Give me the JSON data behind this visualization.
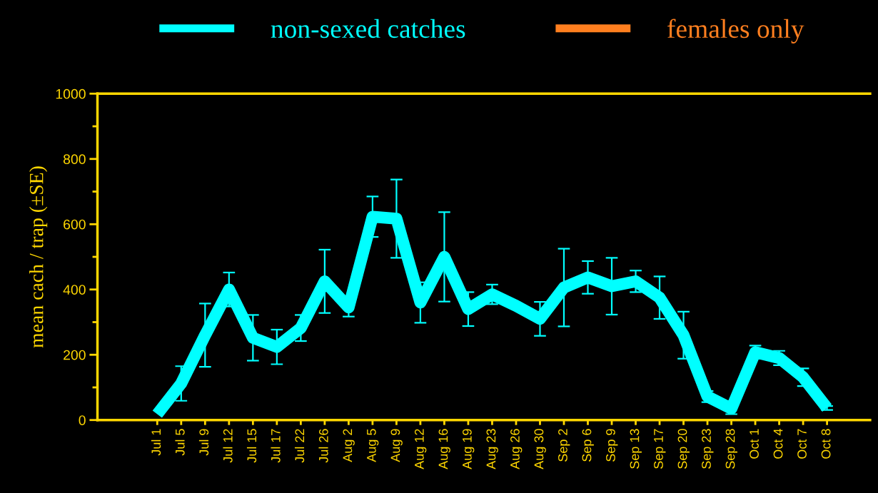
{
  "chart_data": {
    "type": "line",
    "ylabel": "mean cach / trap (±SE)",
    "categories": [
      "Jul 1",
      "Jul 5",
      "Jul 9",
      "Jul 12",
      "Jul 15",
      "Jul 17",
      "Jul 22",
      "Jul 26",
      "Aug 2",
      "Aug 5",
      "Aug 9",
      "Aug 12",
      "Aug 16",
      "Aug 19",
      "Aug 23",
      "Aug 26",
      "Aug 30",
      "Sep 2",
      "Sep 6",
      "Sep 9",
      "Sep 13",
      "Sep 17",
      "Sep 20",
      "Sep 23",
      "Sep 28",
      "Oct 1",
      "Oct 4",
      "Oct 7",
      "Oct 8"
    ],
    "series": [
      {
        "name": "non-sexed catches",
        "color": "#00ffff",
        "values": [
          18,
          112,
          260,
          400,
          252,
          224,
          282,
          425,
          345,
          623,
          617,
          360,
          500,
          340,
          385,
          350,
          310,
          406,
          437,
          410,
          425,
          375,
          260,
          72,
          35,
          208,
          190,
          131,
          37
        ],
        "errors": [
          null,
          53,
          97,
          52,
          70,
          53,
          40,
          97,
          28,
          62,
          120,
          62,
          137,
          52,
          30,
          null,
          52,
          119,
          50,
          87,
          33,
          65,
          72,
          17,
          17,
          20,
          22,
          27,
          6
        ]
      },
      {
        "name": "females only",
        "color": "#ff7f1f",
        "values": [
          null,
          null,
          null,
          null,
          null,
          null,
          null,
          null,
          null,
          null,
          null,
          null,
          null,
          null,
          null,
          null,
          null,
          null,
          null,
          null,
          null,
          null,
          null,
          null,
          null,
          null,
          null,
          null,
          null
        ]
      }
    ],
    "ylim": [
      0,
      1000
    ],
    "yticks": [
      0,
      200,
      400,
      600,
      800,
      1000
    ],
    "grid": false,
    "legend": "top",
    "marker": "none",
    "line_style": "solid"
  }
}
